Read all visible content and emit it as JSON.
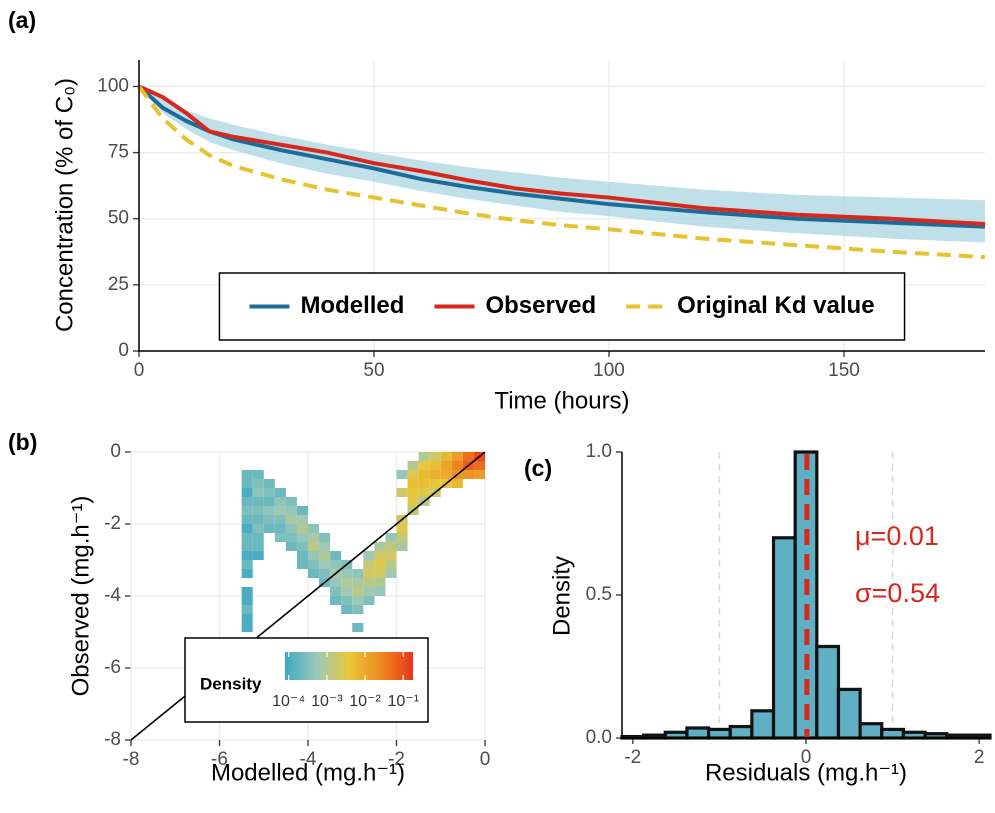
{
  "chart_data": [
    {
      "type": "line",
      "panel_label": "(a)",
      "x_label": "Time (hours)",
      "y_label": "Concentration (% of C₀)",
      "x": [
        0,
        5,
        10,
        15,
        20,
        30,
        40,
        50,
        60,
        70,
        80,
        90,
        100,
        120,
        140,
        160,
        180
      ],
      "band": {
        "color": "#aad6e1",
        "upper": [
          100,
          95,
          91,
          88,
          85.5,
          81.5,
          78,
          75,
          72,
          69.5,
          67.5,
          65.5,
          64,
          61,
          59,
          58,
          57
        ],
        "lower": [
          100,
          90,
          84,
          79,
          76,
          71,
          67,
          64,
          60.5,
          57.5,
          55,
          52.5,
          51,
          47,
          44.5,
          42.5,
          41
        ]
      },
      "series": [
        {
          "name": "Modelled",
          "color": "#1d6b98",
          "line_style": "solid",
          "values": [
            100,
            92,
            87,
            83,
            80,
            76,
            72.5,
            69,
            65,
            62,
            59.5,
            57.5,
            55.5,
            52.5,
            50,
            48.5,
            47
          ]
        },
        {
          "name": "Observed",
          "color": "#d7281e",
          "line_style": "solid",
          "values": [
            100,
            96,
            90,
            83,
            81,
            78,
            75,
            71,
            68,
            64.5,
            61.5,
            59.5,
            58,
            54,
            51.5,
            50,
            48
          ]
        },
        {
          "name": "Original Kd value",
          "color": "#e8c22e",
          "line_style": "dashed",
          "values": [
            100,
            88,
            80,
            74,
            70,
            65,
            61,
            58,
            55,
            52,
            49.5,
            47.5,
            46,
            42.5,
            40,
            37.5,
            35.5
          ]
        }
      ],
      "xlim": [
        0,
        180
      ],
      "ylim": [
        0,
        110
      ],
      "xticks": [
        0,
        50,
        100,
        150
      ],
      "yticks": [
        0,
        25,
        50,
        75,
        100
      ],
      "grid": true,
      "legend_position": "inside-bottom"
    },
    {
      "type": "heatmap",
      "panel_label": "(b)",
      "x_label": "Modelled (mg.h⁻¹)",
      "y_label": "Observed (mg.h⁻¹)",
      "xlim": [
        -8,
        0
      ],
      "ylim": [
        -8,
        0
      ],
      "xticks": [
        -8,
        -6,
        -4,
        -2,
        0
      ],
      "yticks": [
        -8,
        -6,
        -4,
        -2,
        0
      ],
      "grid": true,
      "identity_line": true,
      "legend_position": "bottom-left",
      "colorbar": {
        "title": "Density",
        "log": true,
        "lim": [
          8e-05,
          0.18
        ],
        "colors": [
          "#3fa9c4",
          "#9cc9b9",
          "#e8c83a",
          "#ef8a1f",
          "#e8351b"
        ],
        "ticks": [
          {
            "value": 0.0001,
            "label": "10⁻⁴"
          },
          {
            "value": 0.001,
            "label": "10⁻³"
          },
          {
            "value": 0.01,
            "label": "10⁻²"
          },
          {
            "value": 0.1,
            "label": "10⁻¹"
          }
        ]
      },
      "tiles": {
        "x": [
          -5.375,
          -5.375,
          -5.375,
          -5.375,
          -5.375,
          -5.375,
          -5.375,
          -5.375,
          -5.375,
          -5.375,
          -5.375,
          -5.375,
          -5.375,
          -5.375,
          -5.375,
          -5.375,
          -5.375,
          -5.125,
          -5.125,
          -5.125,
          -5.125,
          -5.125,
          -5.125,
          -5.125,
          -5.125,
          -5.125,
          -5.125,
          -4.875,
          -4.875,
          -4.875,
          -4.875,
          -4.875,
          -4.875,
          -4.625,
          -4.625,
          -4.625,
          -4.625,
          -4.625,
          -4.625,
          -4.375,
          -4.375,
          -4.375,
          -4.375,
          -4.375,
          -4.375,
          -4.125,
          -4.125,
          -4.125,
          -4.125,
          -4.125,
          -4.125,
          -4.125,
          -3.875,
          -3.875,
          -3.875,
          -3.875,
          -3.875,
          -3.875,
          -3.625,
          -3.625,
          -3.625,
          -3.625,
          -3.625,
          -3.625,
          -3.375,
          -3.375,
          -3.375,
          -3.375,
          -3.375,
          -3.375,
          -3.125,
          -3.125,
          -3.125,
          -3.125,
          -3.125,
          -3.125,
          -2.875,
          -2.875,
          -2.875,
          -2.875,
          -2.875,
          -2.875,
          -2.625,
          -2.625,
          -2.625,
          -2.625,
          -2.625,
          -2.625,
          -2.375,
          -2.375,
          -2.375,
          -2.375,
          -2.375,
          -2.375,
          -2.125,
          -2.125,
          -2.125,
          -2.125,
          -2.125,
          -1.875,
          -1.875,
          -1.875,
          -1.875,
          -1.875,
          -1.875,
          -1.625,
          -1.625,
          -1.625,
          -1.625,
          -1.625,
          -1.625,
          -1.375,
          -1.375,
          -1.375,
          -1.375,
          -1.375,
          -1.375,
          -1.125,
          -1.125,
          -1.125,
          -1.125,
          -1.125,
          -0.875,
          -0.875,
          -0.875,
          -0.875,
          -0.625,
          -0.625,
          -0.625,
          -0.625,
          -0.375,
          -0.375,
          -0.375,
          -0.125,
          -0.125,
          -0.125
        ],
        "y": [
          -0.625,
          -0.875,
          -1.125,
          -1.375,
          -1.625,
          -1.875,
          -2.125,
          -2.375,
          -2.625,
          -2.875,
          -3.125,
          -3.375,
          -3.875,
          -4.125,
          -4.375,
          -4.625,
          -4.875,
          -0.625,
          -0.875,
          -1.125,
          -1.375,
          -1.625,
          -1.875,
          -2.125,
          -2.375,
          -2.625,
          -2.875,
          -0.875,
          -1.125,
          -1.375,
          -1.625,
          -1.875,
          -2.125,
          -1.125,
          -1.375,
          -1.625,
          -1.875,
          -2.125,
          -2.375,
          -1.375,
          -1.625,
          -1.875,
          -2.125,
          -2.375,
          -2.625,
          -1.625,
          -1.875,
          -2.125,
          -2.375,
          -2.625,
          -2.875,
          -3.125,
          -2.125,
          -2.375,
          -2.625,
          -2.875,
          -3.125,
          -3.375,
          -2.375,
          -2.625,
          -2.875,
          -3.125,
          -3.375,
          -3.625,
          -2.875,
          -3.125,
          -3.375,
          -3.625,
          -3.875,
          -4.125,
          -3.125,
          -3.375,
          -3.625,
          -3.875,
          -4.125,
          -4.375,
          -3.375,
          -3.625,
          -3.875,
          -4.125,
          -4.375,
          -4.875,
          -2.875,
          -3.125,
          -3.375,
          -3.625,
          -3.875,
          -4.125,
          -2.625,
          -2.875,
          -3.125,
          -3.375,
          -3.625,
          -3.875,
          -2.375,
          -2.625,
          -2.875,
          -3.125,
          -3.375,
          -0.625,
          -1.125,
          -1.875,
          -2.125,
          -2.375,
          -2.625,
          -0.375,
          -0.625,
          -0.875,
          -1.125,
          -1.375,
          -1.625,
          -0.125,
          -0.375,
          -0.625,
          -0.875,
          -1.125,
          -1.375,
          -0.125,
          -0.375,
          -0.625,
          -0.875,
          -1.125,
          -0.125,
          -0.375,
          -0.625,
          -0.875,
          -0.125,
          -0.375,
          -0.625,
          -0.875,
          -0.125,
          -0.375,
          -0.625,
          -0.125,
          -0.375,
          -0.625
        ],
        "values": [
          0.0002,
          0.0002,
          0.0001,
          0.0002,
          0.0003,
          0.0002,
          0.0001,
          0.0002,
          0.0002,
          0.0001,
          0.0002,
          0.0001,
          0.0001,
          0.0001,
          0.0002,
          0.0001,
          0.0001,
          0.0002,
          0.0003,
          0.0004,
          0.0002,
          0.0003,
          0.0002,
          0.0003,
          0.0002,
          0.0002,
          0.0001,
          0.0002,
          0.0003,
          0.0002,
          0.0004,
          0.0003,
          0.0002,
          0.0002,
          0.0004,
          0.0006,
          0.0003,
          0.0002,
          0.0003,
          0.0003,
          0.0005,
          0.0008,
          0.0004,
          0.0003,
          0.0002,
          0.0002,
          0.0006,
          0.001,
          0.0005,
          0.0003,
          0.0002,
          0.0002,
          0.0004,
          0.0008,
          0.0012,
          0.0005,
          0.0003,
          0.0002,
          0.0003,
          0.0006,
          0.0009,
          0.0006,
          0.0003,
          0.0002,
          0.0002,
          0.0004,
          0.0007,
          0.0005,
          0.0003,
          0.0002,
          0.0003,
          0.0005,
          0.0009,
          0.0006,
          0.0003,
          0.0002,
          0.0004,
          0.0008,
          0.0012,
          0.0006,
          0.0003,
          0.0002,
          0.0006,
          0.0015,
          0.002,
          0.0012,
          0.0006,
          0.0003,
          0.0008,
          0.002,
          0.003,
          0.002,
          0.001,
          0.0005,
          0.0005,
          0.0015,
          0.002,
          0.0012,
          0.0006,
          0.0005,
          0.002,
          0.002,
          0.003,
          0.0015,
          0.0008,
          0.001,
          0.003,
          0.005,
          0.004,
          0.003,
          0.0015,
          0.001,
          0.004,
          0.006,
          0.005,
          0.003,
          0.001,
          0.002,
          0.005,
          0.008,
          0.004,
          0.002,
          0.006,
          0.012,
          0.01,
          0.004,
          0.015,
          0.03,
          0.02,
          0.006,
          0.05,
          0.07,
          0.02,
          0.12,
          0.05,
          0.015
        ]
      }
    },
    {
      "type": "histogram",
      "panel_label": "(c)",
      "x_label": "Residuals (mg.h⁻¹)",
      "y_label": "Density",
      "bins": [
        -2.125,
        -1.875,
        -1.625,
        -1.375,
        -1.125,
        -0.875,
        -0.625,
        -0.375,
        -0.125,
        0.125,
        0.375,
        0.625,
        0.875,
        1.125,
        1.375,
        1.625,
        1.875,
        2.125
      ],
      "values": [
        0.005,
        0.01,
        0.02,
        0.035,
        0.03,
        0.04,
        0.095,
        0.7,
        1.0,
        0.32,
        0.17,
        0.05,
        0.03,
        0.02,
        0.015,
        0.01,
        0.01
      ],
      "color": "#5fb0c4",
      "xlim": [
        -2.125,
        2.125
      ],
      "ylim": [
        0,
        1
      ],
      "xticks": [
        -2,
        0,
        2
      ],
      "yticks": [
        {
          "value": 0,
          "label": "0.0"
        },
        {
          "value": 0.5,
          "label": "0.5"
        },
        {
          "value": 1,
          "label": "1.0"
        }
      ],
      "reference_lines": [
        -1,
        1
      ],
      "mean": 0.01,
      "annotation_color": "#d7281e",
      "annotations": [
        "μ=0.01",
        "σ=0.54"
      ]
    }
  ]
}
